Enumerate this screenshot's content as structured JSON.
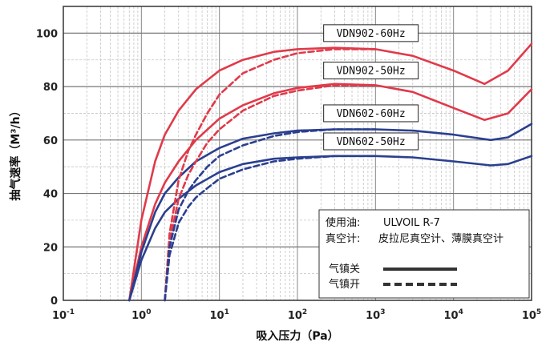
{
  "chart_data": {
    "type": "line",
    "xlabel": "吸入压力（Pa）",
    "ylabel": "抽气速率（M³/h）",
    "xscale": "log",
    "xlim": [
      0.1,
      100000
    ],
    "ylim": [
      0,
      110
    ],
    "x_ticks": [
      {
        "base": "10",
        "exp": "-1"
      },
      {
        "base": "10",
        "exp": "0"
      },
      {
        "base": "10",
        "exp": "1"
      },
      {
        "base": "10",
        "exp": "2"
      },
      {
        "base": "10",
        "exp": "3"
      },
      {
        "base": "10",
        "exp": "4"
      },
      {
        "base": "10",
        "exp": "5"
      }
    ],
    "y_ticks": [
      "0",
      "20",
      "40",
      "60",
      "80",
      "100"
    ],
    "grid": true,
    "series": [
      {
        "name": "VDN902-60Hz",
        "color": "#e03a4a",
        "style": "solid",
        "x": [
          0.7,
          1,
          1.5,
          2,
          3,
          5,
          10,
          20,
          50,
          100,
          300,
          1000,
          3000,
          10000,
          25000,
          50000,
          100000
        ],
        "y": [
          0,
          30,
          52,
          62,
          71,
          79,
          86,
          90,
          93,
          94,
          94.5,
          94,
          91.5,
          86,
          81,
          86,
          96
        ]
      },
      {
        "name": "VDN902-50Hz",
        "color": "#e03a4a",
        "style": "solid",
        "x": [
          0.7,
          1,
          1.5,
          2,
          3,
          5,
          10,
          20,
          50,
          100,
          300,
          1000,
          3000,
          10000,
          25000,
          50000,
          100000
        ],
        "y": [
          0,
          20,
          36,
          44,
          52,
          60,
          68,
          73,
          77.5,
          79.5,
          81,
          80.5,
          78,
          72,
          67.5,
          70,
          79
        ]
      },
      {
        "name": "VDN602-60Hz",
        "color": "#2a3f8f",
        "style": "solid",
        "x": [
          0.7,
          1,
          1.5,
          2,
          3,
          5,
          10,
          20,
          50,
          100,
          300,
          1000,
          3000,
          10000,
          30000,
          50000,
          100000
        ],
        "y": [
          0,
          18,
          33,
          40,
          46,
          52,
          57,
          60.5,
          62.5,
          63.5,
          64,
          64,
          63.5,
          62,
          60,
          61,
          66
        ]
      },
      {
        "name": "VDN602-50Hz",
        "color": "#2a3f8f",
        "style": "solid",
        "x": [
          0.7,
          1,
          1.5,
          2,
          3,
          5,
          10,
          20,
          50,
          100,
          300,
          1000,
          3000,
          10000,
          30000,
          50000,
          100000
        ],
        "y": [
          0,
          15,
          27,
          33,
          38,
          43,
          48,
          51,
          53,
          53.5,
          54,
          54,
          53.5,
          52,
          50.5,
          51,
          54
        ]
      },
      {
        "name": "VDN902-60Hz",
        "color": "#e03a4a",
        "style": "dashed",
        "x": [
          2,
          2.3,
          3,
          4,
          5,
          7,
          10,
          20,
          50,
          100,
          300,
          1000
        ],
        "y": [
          0,
          25,
          45,
          56,
          62,
          70,
          77,
          85,
          90,
          92.5,
          94,
          94
        ]
      },
      {
        "name": "VDN902-50Hz",
        "color": "#e03a4a",
        "style": "dashed",
        "x": [
          2,
          2.3,
          3,
          4,
          5,
          7,
          10,
          20,
          50,
          100,
          300,
          1000
        ],
        "y": [
          0,
          22,
          38,
          47,
          52,
          59,
          64,
          71,
          76.5,
          78.5,
          80.5,
          80.5
        ]
      },
      {
        "name": "VDN602-60Hz",
        "color": "#2a3f8f",
        "style": "dashed",
        "x": [
          2,
          2.3,
          3,
          4,
          5,
          7,
          10,
          20,
          50,
          100,
          300,
          1000
        ],
        "y": [
          0,
          20,
          34,
          41,
          45,
          50,
          54,
          58,
          61.5,
          63,
          64,
          64
        ]
      },
      {
        "name": "VDN602-50Hz",
        "color": "#2a3f8f",
        "style": "dashed",
        "x": [
          2,
          2.3,
          3,
          4,
          5,
          7,
          10,
          20,
          50,
          100,
          300,
          1000
        ],
        "y": [
          0,
          17,
          29,
          35,
          38.5,
          42,
          45.5,
          49,
          52,
          53,
          54,
          54
        ]
      }
    ],
    "series_labels": [
      {
        "text": "VDN902-60Hz",
        "box_x": 10,
        "box_y": 100
      },
      {
        "text": "VDN902-50Hz",
        "box_x": 10,
        "box_y": 86
      },
      {
        "text": "VDN602-60Hz",
        "box_x": 10,
        "box_y": 70
      },
      {
        "text": "VDN602-50Hz",
        "box_x": 10,
        "box_y": 59.5
      }
    ],
    "legend": {
      "placement": "bottom-right",
      "oil_label": "使用油:",
      "oil_value": "ULVOIL R-7",
      "gauge_label": "真空计:",
      "gauge_value": "皮拉尼真空计、薄膜真空计",
      "gas_ballast_off": "气镇关",
      "gas_ballast_on": "气镇开"
    }
  }
}
